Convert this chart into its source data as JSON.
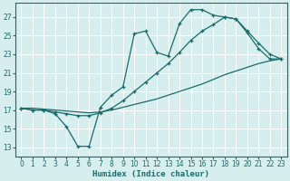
{
  "xlabel": "Humidex (Indice chaleur)",
  "background_color": "#d6eeee",
  "grid_color": "#c8dede",
  "line_color": "#1a6b6b",
  "xlim": [
    -0.5,
    23.5
  ],
  "ylim": [
    12,
    28.5
  ],
  "xticks": [
    0,
    1,
    2,
    3,
    4,
    5,
    6,
    7,
    8,
    9,
    10,
    11,
    12,
    13,
    14,
    15,
    16,
    17,
    18,
    19,
    20,
    21,
    22,
    23
  ],
  "yticks": [
    13,
    15,
    17,
    19,
    21,
    23,
    25,
    27
  ],
  "line1_x": [
    0,
    1,
    2,
    3,
    4,
    5,
    6,
    7,
    8,
    9,
    10,
    11,
    12,
    13,
    14,
    15,
    16,
    17,
    18,
    19,
    20,
    21,
    22,
    23
  ],
  "line1_y": [
    17.2,
    17.0,
    17.0,
    16.6,
    15.2,
    13.1,
    13.1,
    17.3,
    18.6,
    19.5,
    25.2,
    25.5,
    23.2,
    22.8,
    26.3,
    27.8,
    27.8,
    27.2,
    27.0,
    26.8,
    25.3,
    23.6,
    22.5,
    22.5
  ],
  "line2_x": [
    0,
    1,
    2,
    3,
    4,
    5,
    6,
    7,
    8,
    9,
    10,
    11,
    12,
    13,
    14,
    15,
    16,
    17,
    18,
    19,
    20,
    21,
    22,
    23
  ],
  "line2_y": [
    17.2,
    17.2,
    17.1,
    17.0,
    16.9,
    16.8,
    16.7,
    16.8,
    17.0,
    17.3,
    17.6,
    17.9,
    18.2,
    18.6,
    19.0,
    19.4,
    19.8,
    20.3,
    20.8,
    21.2,
    21.6,
    22.0,
    22.3,
    22.5
  ],
  "line3_x": [
    0,
    1,
    2,
    3,
    4,
    5,
    6,
    7,
    8,
    9,
    10,
    11,
    12,
    13,
    14,
    15,
    16,
    17,
    18,
    19,
    20,
    21,
    22,
    23
  ],
  "line3_y": [
    17.2,
    17.0,
    17.0,
    16.8,
    16.6,
    16.4,
    16.4,
    16.7,
    17.2,
    18.0,
    19.0,
    20.0,
    21.0,
    22.0,
    23.2,
    24.5,
    25.5,
    26.2,
    27.0,
    26.8,
    25.5,
    24.2,
    23.0,
    22.5
  ]
}
